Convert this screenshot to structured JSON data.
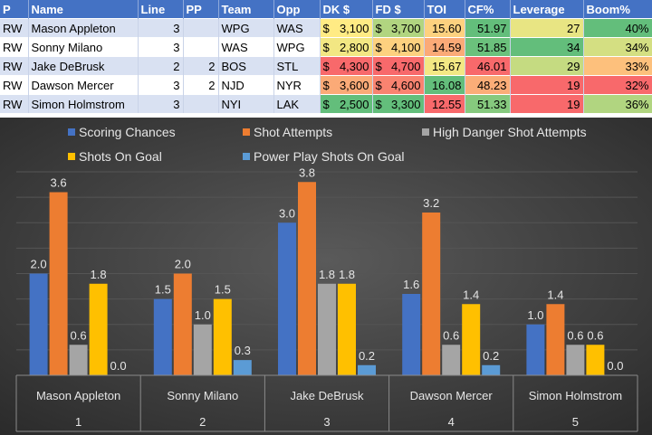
{
  "table": {
    "headers": [
      "P",
      "Name",
      "Line",
      "PP",
      "Team",
      "Opp",
      "DK $",
      "FD $",
      "TOI",
      "CF%",
      "Leverage",
      "Boom%"
    ],
    "rows": [
      {
        "p": "RW",
        "name": "Mason Appleton",
        "line": "3",
        "pp": "",
        "team": "WPG",
        "opp": "WAS",
        "dk": "3,100",
        "fd": "3,700",
        "toi": "15.60",
        "cf": "51.97",
        "leverage": "27",
        "boom": "40%"
      },
      {
        "p": "RW",
        "name": "Sonny Milano",
        "line": "3",
        "pp": "",
        "team": "WAS",
        "opp": "WPG",
        "dk": "2,800",
        "fd": "4,100",
        "toi": "14.59",
        "cf": "51.85",
        "leverage": "34",
        "boom": "34%"
      },
      {
        "p": "RW",
        "name": "Jake DeBrusk",
        "line": "2",
        "pp": "2",
        "team": "BOS",
        "opp": "STL",
        "dk": "4,300",
        "fd": "4,700",
        "toi": "15.67",
        "cf": "46.01",
        "leverage": "29",
        "boom": "33%"
      },
      {
        "p": "RW",
        "name": "Dawson Mercer",
        "line": "3",
        "pp": "2",
        "team": "NJD",
        "opp": "NYR",
        "dk": "3,600",
        "fd": "4,600",
        "toi": "16.08",
        "cf": "48.23",
        "leverage": "19",
        "boom": "32%"
      },
      {
        "p": "RW",
        "name": "Simon Holmstrom",
        "line": "3",
        "pp": "",
        "team": "NYI",
        "opp": "LAK",
        "dk": "2,500",
        "fd": "3,300",
        "toi": "12.55",
        "cf": "51.33",
        "leverage": "19",
        "boom": "36%"
      }
    ],
    "currency_symbol": "$",
    "cell_colors": {
      "dk": [
        "#ffeb84",
        "#f2e783",
        "#f8696b",
        "#fbaa77",
        "#63be7b"
      ],
      "fd": [
        "#b1d580",
        "#fdd17f",
        "#f8696b",
        "#f98370",
        "#63be7b"
      ],
      "toi": [
        "#fdd17f",
        "#fbaa77",
        "#f3e884",
        "#63be7b",
        "#f8696b"
      ],
      "cf": [
        "#63be7b",
        "#6bc17c",
        "#f8696b",
        "#fbad78",
        "#86c97e"
      ],
      "leverage": [
        "#e8e583",
        "#63be7b",
        "#c5db81",
        "#f8696b",
        "#f8696b"
      ],
      "boom": [
        "#63be7b",
        "#d4df82",
        "#fdc07c",
        "#f8696b",
        "#b1d580"
      ]
    }
  },
  "chart_data": {
    "type": "bar",
    "categories": [
      "Mason Appleton",
      "Sonny Milano",
      "Jake DeBrusk",
      "Dawson Mercer",
      "Simon Holmstrom"
    ],
    "category_indices": [
      "1",
      "2",
      "3",
      "4",
      "5"
    ],
    "series": [
      {
        "name": "Scoring Chances",
        "color": "#4472c4",
        "values": [
          2.0,
          1.5,
          3.0,
          1.6,
          1.0
        ]
      },
      {
        "name": "Shot Attempts",
        "color": "#ed7d31",
        "values": [
          3.6,
          2.0,
          3.8,
          3.2,
          1.4
        ]
      },
      {
        "name": "High Danger Shot Attempts",
        "color": "#a5a5a5",
        "values": [
          0.6,
          1.0,
          1.8,
          0.6,
          0.6
        ]
      },
      {
        "name": "Shots On Goal",
        "color": "#ffc000",
        "values": [
          1.8,
          1.5,
          1.8,
          1.4,
          0.6
        ]
      },
      {
        "name": "Power Play Shots On Goal",
        "color": "#5b9bd5",
        "values": [
          0.0,
          0.3,
          0.2,
          0.2,
          0.0
        ]
      }
    ],
    "ylim": [
      0,
      4.0
    ],
    "legend_position": "top-left",
    "data_labels": true,
    "title": "",
    "xlabel": "",
    "ylabel": ""
  }
}
